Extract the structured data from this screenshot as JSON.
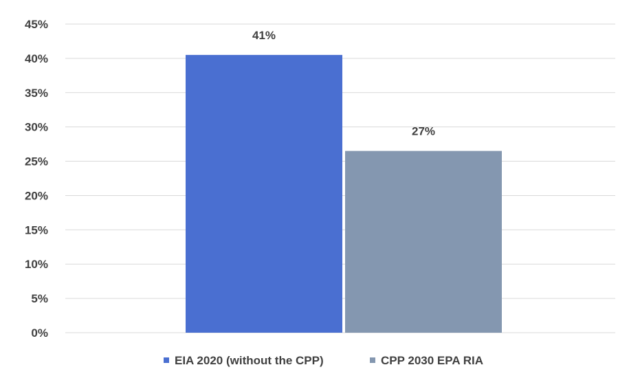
{
  "chart_data": {
    "type": "bar",
    "categories": [
      "EIA 2020 (without the CPP)",
      "CPP 2030 EPA RIA"
    ],
    "values": [
      0.405,
      0.265
    ],
    "data_labels": [
      "41%",
      "27%"
    ],
    "colors": [
      "#4a6fd1",
      "#8497b0"
    ],
    "ylim": [
      0,
      0.45
    ],
    "yticks": [
      0,
      0.05,
      0.1,
      0.15,
      0.2,
      0.25,
      0.3,
      0.35,
      0.4,
      0.45
    ],
    "ytick_labels": [
      "0%",
      "5%",
      "10%",
      "15%",
      "20%",
      "25%",
      "30%",
      "35%",
      "40%",
      "45%"
    ],
    "grid": true,
    "legend_position": "bottom",
    "legend": [
      {
        "label": "EIA 2020 (without the CPP)",
        "color": "#4a6fd1"
      },
      {
        "label": "CPP 2030 EPA RIA",
        "color": "#8497b0"
      }
    ]
  }
}
